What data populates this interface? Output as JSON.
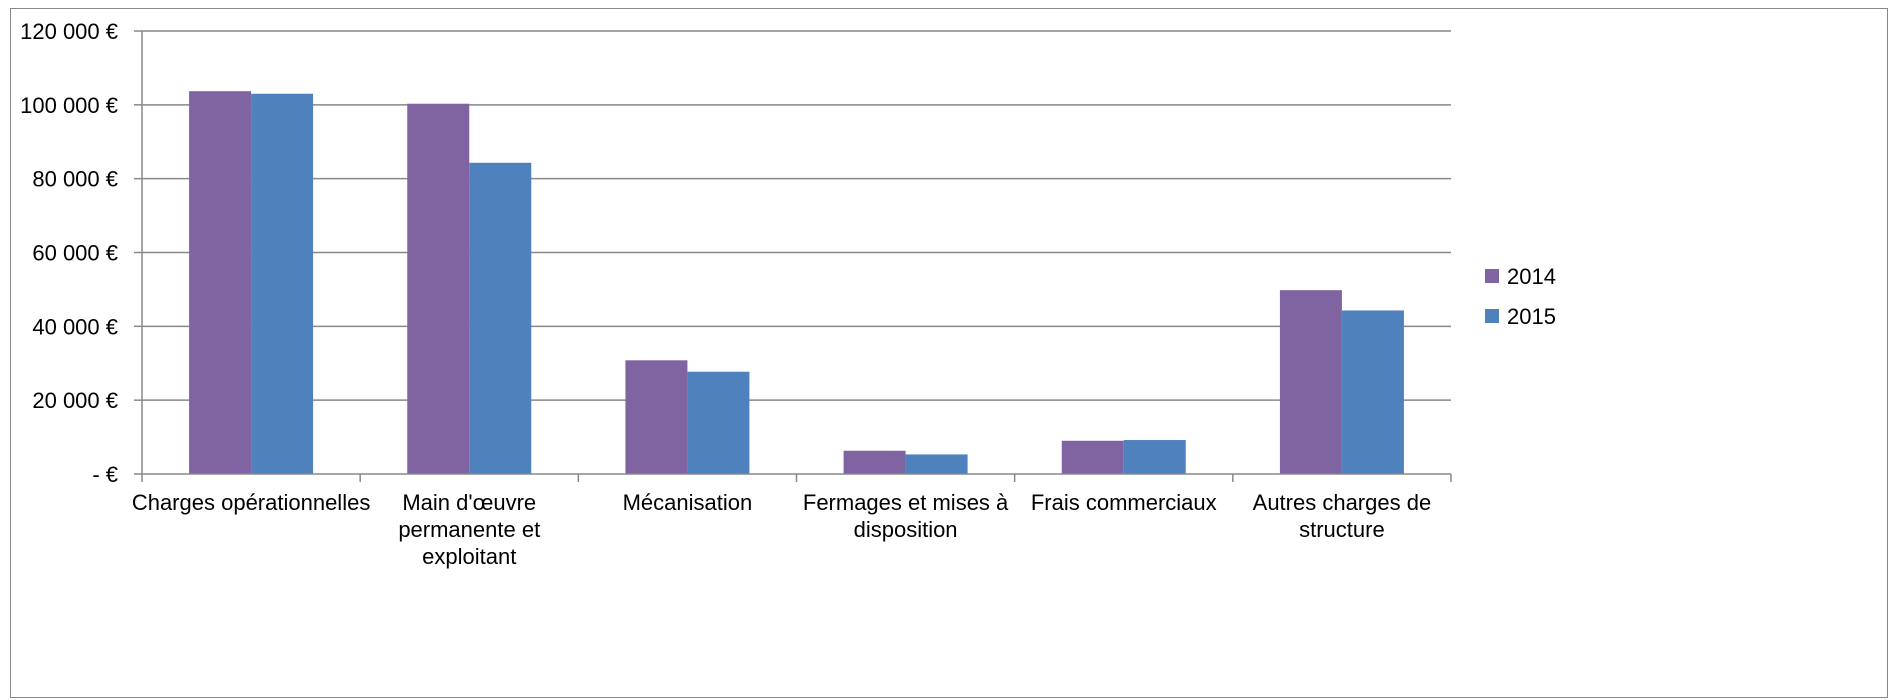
{
  "chart_data": {
    "type": "bar",
    "title": "",
    "xlabel": "",
    "ylabel": "",
    "categories": [
      [
        "Charges opérationnelles"
      ],
      [
        "Main d'œuvre",
        "permanente et",
        "exploitant"
      ],
      [
        "Mécanisation"
      ],
      [
        "Fermages et mises à",
        "disposition"
      ],
      [
        "Frais commerciaux"
      ],
      [
        "Autres charges de",
        "structure"
      ]
    ],
    "series": [
      {
        "name": "2014",
        "color": "#8064A2",
        "values": [
          103700,
          100300,
          30800,
          6300,
          9000,
          49800
        ]
      },
      {
        "name": "2015",
        "color": "#4F81BD",
        "values": [
          103000,
          84300,
          27700,
          5300,
          9200,
          44300
        ]
      }
    ],
    "ylim": [
      0,
      120000
    ],
    "yticks": [
      0,
      20000,
      40000,
      60000,
      80000,
      100000,
      120000
    ],
    "ytick_labels": [
      "-   €",
      "20 000 €",
      "40 000 €",
      "60 000 €",
      "80 000 €",
      "100 000 €",
      "120 000 €"
    ],
    "grid": true,
    "legend_position": "right"
  }
}
